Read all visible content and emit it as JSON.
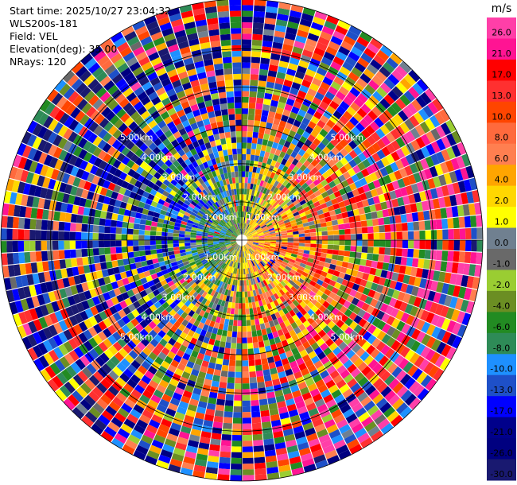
{
  "header": {
    "start_time": "Start time: 2025/10/27 23:04:32",
    "station": "WLS200s-181",
    "field": "Field: VEL",
    "elevation": "Elevation(deg): 35.00",
    "nrays": "NRays: 120"
  },
  "chart_data": {
    "type": "heatmap",
    "projection": "polar-ppi",
    "field": "VEL",
    "unit": "m/s",
    "nrays": 120,
    "range_rings_km": [
      1,
      2,
      3,
      4,
      5
    ],
    "ring_labels": [
      "1.00km",
      "2.00km",
      "3.00km",
      "4.00km",
      "5.00km"
    ],
    "max_range_km": 6.3,
    "colorbar": {
      "ticks": [
        "26.0",
        "21.0",
        "17.0",
        "13.0",
        "10.0",
        "8.0",
        "6.0",
        "4.0",
        "2.0",
        "1.0",
        "0.0",
        "-1.0",
        "-2.0",
        "-4.0",
        "-6.0",
        "-8.0",
        "-10.0",
        "-13.0",
        "-17.0",
        "-21.0",
        "-26.0",
        "-30.0"
      ],
      "colors": [
        "#ff3fa8",
        "#ff1493",
        "#ff0000",
        "#ff3030",
        "#ff4500",
        "#ff6a3d",
        "#ff7f50",
        "#ffa500",
        "#ffd700",
        "#ffff00",
        "#708090",
        "#696969",
        "#9acd32",
        "#6b8e23",
        "#228b22",
        "#2e8b57",
        "#1e90ff",
        "#1e50c8",
        "#0000ff",
        "#00008b",
        "#000080",
        "#191970"
      ]
    }
  }
}
